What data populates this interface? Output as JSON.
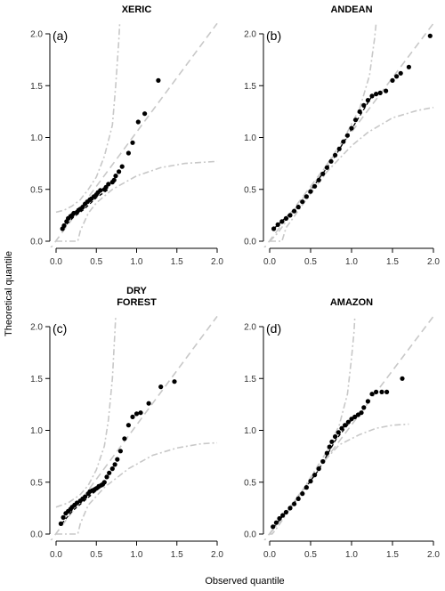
{
  "figure": {
    "xlabel": "Observed quantile",
    "ylabel": "Theoretical quantile"
  },
  "chart_data": [
    {
      "type": "scatter",
      "panel_label": "(a)",
      "title": [
        "XERIC"
      ],
      "xlim": [
        0,
        2
      ],
      "ylim": [
        0,
        2
      ],
      "xticks": [
        "0.0",
        "0.5",
        "1.0",
        "1.5",
        "2.0"
      ],
      "yticks": [
        "0.0",
        "0.5",
        "1.0",
        "1.5",
        "2.0"
      ],
      "reference_line": [
        [
          -0.1,
          -0.1
        ],
        [
          2.0,
          2.1
        ]
      ],
      "envelope_upper": [
        [
          0.0,
          0.28
        ],
        [
          0.1,
          0.3
        ],
        [
          0.2,
          0.34
        ],
        [
          0.3,
          0.4
        ],
        [
          0.4,
          0.5
        ],
        [
          0.5,
          0.62
        ],
        [
          0.6,
          0.82
        ],
        [
          0.7,
          1.12
        ],
        [
          0.74,
          1.5
        ],
        [
          0.78,
          1.95
        ],
        [
          0.79,
          2.1
        ]
      ],
      "envelope_lower": [
        [
          0.0,
          0.0
        ],
        [
          0.27,
          0.0
        ],
        [
          0.3,
          0.1
        ],
        [
          0.4,
          0.27
        ],
        [
          0.5,
          0.37
        ],
        [
          0.7,
          0.5
        ],
        [
          1.0,
          0.63
        ],
        [
          1.3,
          0.71
        ],
        [
          1.6,
          0.75
        ],
        [
          2.0,
          0.77
        ]
      ],
      "fit_line": [
        [
          0.08,
          0.12
        ],
        [
          0.2,
          0.22
        ],
        [
          0.35,
          0.31
        ],
        [
          0.5,
          0.42
        ],
        [
          0.65,
          0.5
        ]
      ],
      "points": [
        [
          0.08,
          0.12
        ],
        [
          0.1,
          0.15
        ],
        [
          0.13,
          0.19
        ],
        [
          0.15,
          0.22
        ],
        [
          0.18,
          0.24
        ],
        [
          0.2,
          0.25
        ],
        [
          0.22,
          0.27
        ],
        [
          0.26,
          0.28
        ],
        [
          0.28,
          0.3
        ],
        [
          0.3,
          0.31
        ],
        [
          0.33,
          0.33
        ],
        [
          0.36,
          0.36
        ],
        [
          0.39,
          0.38
        ],
        [
          0.42,
          0.4
        ],
        [
          0.44,
          0.41
        ],
        [
          0.47,
          0.43
        ],
        [
          0.5,
          0.45
        ],
        [
          0.52,
          0.47
        ],
        [
          0.55,
          0.49
        ],
        [
          0.6,
          0.5
        ],
        [
          0.62,
          0.52
        ],
        [
          0.65,
          0.55
        ],
        [
          0.7,
          0.57
        ],
        [
          0.72,
          0.59
        ],
        [
          0.74,
          0.63
        ],
        [
          0.78,
          0.67
        ],
        [
          0.82,
          0.72
        ],
        [
          0.9,
          0.85
        ],
        [
          0.95,
          0.95
        ],
        [
          1.02,
          1.15
        ],
        [
          1.1,
          1.23
        ],
        [
          1.27,
          1.55
        ]
      ]
    },
    {
      "type": "scatter",
      "panel_label": "(b)",
      "title": [
        "ANDEAN"
      ],
      "xlim": [
        0,
        2
      ],
      "ylim": [
        0,
        2
      ],
      "xticks": [
        "0.0",
        "0.5",
        "1.0",
        "1.5",
        "2.0"
      ],
      "yticks": [
        "0.0",
        "0.5",
        "1.0",
        "1.5",
        "2.0"
      ],
      "reference_line": [
        [
          -0.1,
          -0.1
        ],
        [
          2.0,
          2.1
        ]
      ],
      "envelope_upper": [
        [
          0.0,
          0.0
        ],
        [
          0.1,
          0.08
        ],
        [
          0.3,
          0.3
        ],
        [
          0.6,
          0.62
        ],
        [
          0.9,
          0.98
        ],
        [
          1.1,
          1.28
        ],
        [
          1.22,
          1.6
        ],
        [
          1.28,
          1.95
        ],
        [
          1.3,
          2.1
        ]
      ],
      "envelope_lower": [
        [
          0.0,
          0.0
        ],
        [
          0.15,
          0.0
        ],
        [
          0.2,
          0.13
        ],
        [
          0.4,
          0.35
        ],
        [
          0.7,
          0.67
        ],
        [
          1.0,
          0.92
        ],
        [
          1.2,
          1.05
        ],
        [
          1.5,
          1.19
        ],
        [
          1.8,
          1.26
        ],
        [
          2.0,
          1.29
        ]
      ],
      "fit_line": [
        [
          0.05,
          0.12
        ],
        [
          0.4,
          0.38
        ],
        [
          0.8,
          0.82
        ],
        [
          1.0,
          1.08
        ],
        [
          1.25,
          1.4
        ]
      ],
      "points": [
        [
          0.05,
          0.12
        ],
        [
          0.1,
          0.16
        ],
        [
          0.15,
          0.19
        ],
        [
          0.2,
          0.22
        ],
        [
          0.25,
          0.25
        ],
        [
          0.3,
          0.29
        ],
        [
          0.35,
          0.33
        ],
        [
          0.4,
          0.38
        ],
        [
          0.45,
          0.43
        ],
        [
          0.5,
          0.48
        ],
        [
          0.55,
          0.53
        ],
        [
          0.6,
          0.59
        ],
        [
          0.65,
          0.65
        ],
        [
          0.7,
          0.71
        ],
        [
          0.75,
          0.77
        ],
        [
          0.8,
          0.83
        ],
        [
          0.85,
          0.89
        ],
        [
          0.9,
          0.96
        ],
        [
          0.95,
          1.02
        ],
        [
          1.0,
          1.09
        ],
        [
          1.05,
          1.17
        ],
        [
          1.1,
          1.25
        ],
        [
          1.15,
          1.31
        ],
        [
          1.2,
          1.36
        ],
        [
          1.25,
          1.4
        ],
        [
          1.3,
          1.42
        ],
        [
          1.35,
          1.43
        ],
        [
          1.42,
          1.45
        ],
        [
          1.5,
          1.55
        ],
        [
          1.55,
          1.59
        ],
        [
          1.6,
          1.62
        ],
        [
          1.7,
          1.68
        ],
        [
          1.96,
          1.98
        ]
      ]
    },
    {
      "type": "scatter",
      "panel_label": "(c)",
      "title": [
        "DRY",
        "FOREST"
      ],
      "xlim": [
        0,
        2
      ],
      "ylim": [
        0,
        2
      ],
      "xticks": [
        "0.0",
        "0.5",
        "1.0",
        "1.5",
        "2.0"
      ],
      "yticks": [
        "0.0",
        "0.5",
        "1.0",
        "1.5",
        "2.0"
      ],
      "reference_line": [
        [
          -0.1,
          -0.1
        ],
        [
          2.0,
          2.1
        ]
      ],
      "envelope_upper": [
        [
          0.0,
          0.26
        ],
        [
          0.15,
          0.3
        ],
        [
          0.3,
          0.38
        ],
        [
          0.4,
          0.47
        ],
        [
          0.5,
          0.62
        ],
        [
          0.6,
          0.85
        ],
        [
          0.65,
          1.1
        ],
        [
          0.7,
          1.5
        ],
        [
          0.73,
          1.95
        ],
        [
          0.74,
          2.1
        ]
      ],
      "envelope_lower": [
        [
          0.0,
          0.0
        ],
        [
          0.27,
          0.0
        ],
        [
          0.3,
          0.1
        ],
        [
          0.4,
          0.28
        ],
        [
          0.6,
          0.45
        ],
        [
          0.9,
          0.63
        ],
        [
          1.2,
          0.76
        ],
        [
          1.5,
          0.83
        ],
        [
          1.8,
          0.87
        ],
        [
          2.0,
          0.88
        ]
      ],
      "fit_line": [
        [
          0.07,
          0.1
        ],
        [
          0.2,
          0.22
        ],
        [
          0.35,
          0.32
        ],
        [
          0.5,
          0.42
        ],
        [
          0.6,
          0.48
        ]
      ],
      "points": [
        [
          0.06,
          0.1
        ],
        [
          0.09,
          0.16
        ],
        [
          0.12,
          0.2
        ],
        [
          0.15,
          0.22
        ],
        [
          0.18,
          0.24
        ],
        [
          0.2,
          0.26
        ],
        [
          0.23,
          0.28
        ],
        [
          0.26,
          0.3
        ],
        [
          0.3,
          0.32
        ],
        [
          0.33,
          0.34
        ],
        [
          0.36,
          0.36
        ],
        [
          0.4,
          0.39
        ],
        [
          0.42,
          0.41
        ],
        [
          0.45,
          0.42
        ],
        [
          0.48,
          0.43
        ],
        [
          0.5,
          0.44
        ],
        [
          0.53,
          0.46
        ],
        [
          0.56,
          0.47
        ],
        [
          0.58,
          0.48
        ],
        [
          0.6,
          0.5
        ],
        [
          0.63,
          0.55
        ],
        [
          0.66,
          0.59
        ],
        [
          0.7,
          0.63
        ],
        [
          0.73,
          0.67
        ],
        [
          0.76,
          0.72
        ],
        [
          0.8,
          0.8
        ],
        [
          0.85,
          0.92
        ],
        [
          0.9,
          1.05
        ],
        [
          0.95,
          1.13
        ],
        [
          1.0,
          1.16
        ],
        [
          1.05,
          1.17
        ],
        [
          1.15,
          1.26
        ],
        [
          1.3,
          1.42
        ],
        [
          1.47,
          1.47
        ]
      ]
    },
    {
      "type": "scatter",
      "panel_label": "(d)",
      "title": [
        "AMAZON"
      ],
      "xlim": [
        0,
        2
      ],
      "ylim": [
        0,
        2
      ],
      "xticks": [
        "0.0",
        "0.5",
        "1.0",
        "1.5",
        "2.0"
      ],
      "yticks": [
        "0.0",
        "0.5",
        "1.0",
        "1.5",
        "2.0"
      ],
      "reference_line": [
        [
          -0.1,
          -0.1
        ],
        [
          2.0,
          2.1
        ]
      ],
      "envelope_upper": [
        [
          0.0,
          0.0
        ],
        [
          0.1,
          0.1
        ],
        [
          0.4,
          0.42
        ],
        [
          0.7,
          0.8
        ],
        [
          0.85,
          1.05
        ],
        [
          0.95,
          1.35
        ],
        [
          1.0,
          1.7
        ],
        [
          1.03,
          1.95
        ],
        [
          1.04,
          2.1
        ]
      ],
      "envelope_lower": [
        [
          0.0,
          0.0
        ],
        [
          0.03,
          0.0
        ],
        [
          0.08,
          0.05
        ],
        [
          0.3,
          0.3
        ],
        [
          0.6,
          0.65
        ],
        [
          0.85,
          0.86
        ],
        [
          1.1,
          0.96
        ],
        [
          1.3,
          1.02
        ],
        [
          1.5,
          1.05
        ],
        [
          1.7,
          1.06
        ]
      ],
      "fit_line": [
        [
          0.04,
          0.06
        ],
        [
          0.3,
          0.3
        ],
        [
          0.6,
          0.62
        ],
        [
          0.8,
          0.9
        ],
        [
          1.0,
          1.1
        ]
      ],
      "points": [
        [
          0.04,
          0.07
        ],
        [
          0.08,
          0.11
        ],
        [
          0.12,
          0.15
        ],
        [
          0.16,
          0.18
        ],
        [
          0.2,
          0.21
        ],
        [
          0.25,
          0.25
        ],
        [
          0.3,
          0.29
        ],
        [
          0.35,
          0.34
        ],
        [
          0.4,
          0.39
        ],
        [
          0.45,
          0.45
        ],
        [
          0.5,
          0.51
        ],
        [
          0.55,
          0.57
        ],
        [
          0.6,
          0.63
        ],
        [
          0.65,
          0.7
        ],
        [
          0.7,
          0.78
        ],
        [
          0.73,
          0.84
        ],
        [
          0.76,
          0.89
        ],
        [
          0.8,
          0.94
        ],
        [
          0.84,
          0.98
        ],
        [
          0.88,
          1.02
        ],
        [
          0.92,
          1.05
        ],
        [
          0.96,
          1.08
        ],
        [
          1.0,
          1.11
        ],
        [
          1.04,
          1.13
        ],
        [
          1.08,
          1.15
        ],
        [
          1.12,
          1.17
        ],
        [
          1.15,
          1.22
        ],
        [
          1.2,
          1.28
        ],
        [
          1.25,
          1.35
        ],
        [
          1.3,
          1.37
        ],
        [
          1.37,
          1.37
        ],
        [
          1.43,
          1.37
        ],
        [
          1.62,
          1.5
        ]
      ]
    }
  ]
}
